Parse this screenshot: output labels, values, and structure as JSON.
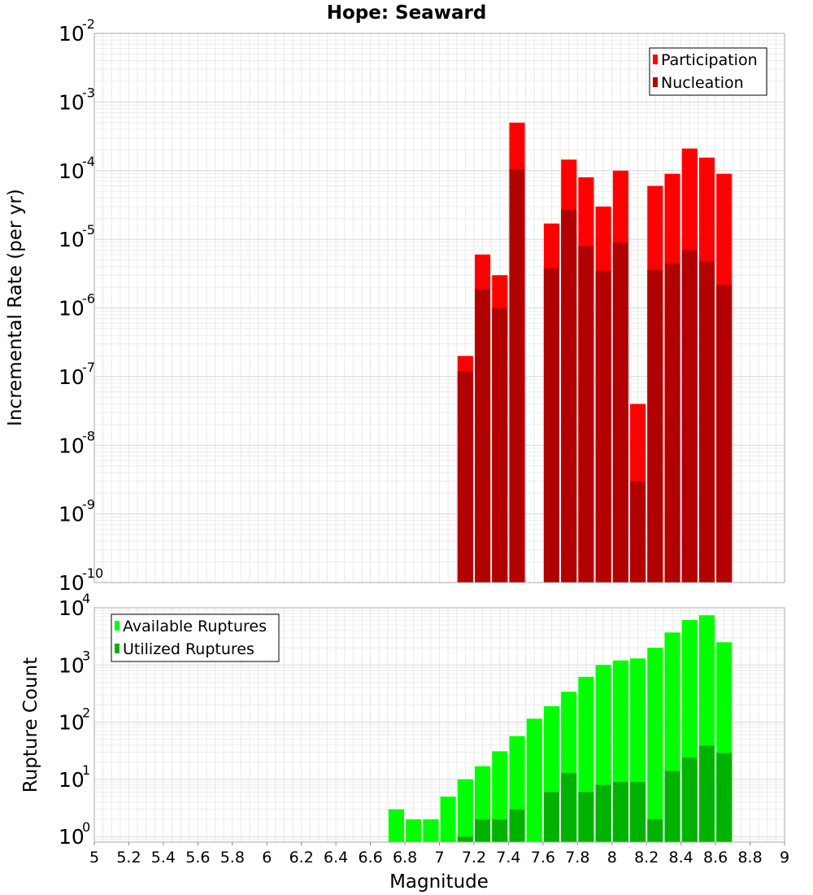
{
  "chart_data": [
    {
      "type": "bar",
      "title": "Hope: Seaward",
      "ylabel": "Incremental Rate (per yr)",
      "xlabel": "",
      "yscale": "log",
      "ylim": [
        1e-10,
        0.01
      ],
      "xlim": [
        5,
        9
      ],
      "grid": true,
      "legend_position": "top-right",
      "bar_width": 0.09,
      "series": [
        {
          "name": "Participation",
          "color": "#ff0000",
          "x": [
            7.15,
            7.25,
            7.35,
            7.45,
            7.65,
            7.75,
            7.85,
            7.95,
            8.05,
            8.15,
            8.25,
            8.35,
            8.45,
            8.55,
            8.65
          ],
          "values": [
            2e-07,
            6e-06,
            3e-06,
            0.0005,
            1.7e-05,
            0.000145,
            8e-05,
            3e-05,
            0.0001,
            4e-08,
            6e-05,
            9e-05,
            0.00021,
            0.000155,
            9e-05
          ]
        },
        {
          "name": "Nucleation",
          "color": "#b20000",
          "x": [
            7.15,
            7.25,
            7.35,
            7.45,
            7.65,
            7.75,
            7.85,
            7.95,
            8.05,
            8.15,
            8.25,
            8.35,
            8.45,
            8.55,
            8.65
          ],
          "values": [
            1.2e-07,
            1.9e-06,
            1e-06,
            0.000105,
            3.8e-06,
            2.7e-05,
            8e-06,
            3.5e-06,
            9e-06,
            3e-09,
            3.6e-06,
            4.4e-06,
            7e-06,
            4.8e-06,
            2.2e-06
          ]
        }
      ],
      "yticks": [
        {
          "base": "10",
          "exp": "-10"
        },
        {
          "base": "10",
          "exp": "-9"
        },
        {
          "base": "10",
          "exp": "-8"
        },
        {
          "base": "10",
          "exp": "-7"
        },
        {
          "base": "10",
          "exp": "-6"
        },
        {
          "base": "10",
          "exp": "-5"
        },
        {
          "base": "10",
          "exp": "-4"
        },
        {
          "base": "10",
          "exp": "-3"
        },
        {
          "base": "10",
          "exp": "-2"
        }
      ]
    },
    {
      "type": "bar",
      "title": "",
      "ylabel": "Rupture Count",
      "xlabel": "Magnitude",
      "yscale": "log",
      "ylim": [
        0.8,
        10000
      ],
      "xlim": [
        5,
        9
      ],
      "grid": true,
      "legend_position": "top-left",
      "bar_width": 0.09,
      "series": [
        {
          "name": "Available Ruptures",
          "color": "#00ff00",
          "x": [
            6.75,
            6.85,
            6.95,
            7.05,
            7.15,
            7.25,
            7.35,
            7.45,
            7.55,
            7.65,
            7.75,
            7.85,
            7.95,
            8.05,
            8.15,
            8.25,
            8.35,
            8.45,
            8.55,
            8.65
          ],
          "values": [
            3,
            2,
            2,
            5,
            10,
            17,
            31,
            57,
            115,
            190,
            340,
            620,
            1000,
            1200,
            1300,
            2000,
            3700,
            6100,
            7400,
            2500
          ]
        },
        {
          "name": "Utilized Ruptures",
          "color": "#00b200",
          "x": [
            7.15,
            7.25,
            7.35,
            7.45,
            7.65,
            7.75,
            7.85,
            7.95,
            8.05,
            8.15,
            8.25,
            8.35,
            8.45,
            8.55,
            8.65
          ],
          "values": [
            1,
            2,
            2,
            3,
            6,
            13,
            6,
            8,
            9,
            9,
            2,
            14,
            24,
            39,
            29
          ]
        }
      ],
      "yticks": [
        {
          "base": "10",
          "exp": "0"
        },
        {
          "base": "10",
          "exp": "1"
        },
        {
          "base": "10",
          "exp": "2"
        },
        {
          "base": "10",
          "exp": "3"
        },
        {
          "base": "10",
          "exp": "4"
        }
      ],
      "xticks": [
        "5",
        "5.2",
        "5.4",
        "5.6",
        "5.8",
        "6",
        "6.2",
        "6.4",
        "6.6",
        "6.8",
        "7",
        "7.2",
        "7.4",
        "7.6",
        "7.8",
        "8",
        "8.2",
        "8.4",
        "8.6",
        "8.8",
        "9"
      ]
    }
  ]
}
